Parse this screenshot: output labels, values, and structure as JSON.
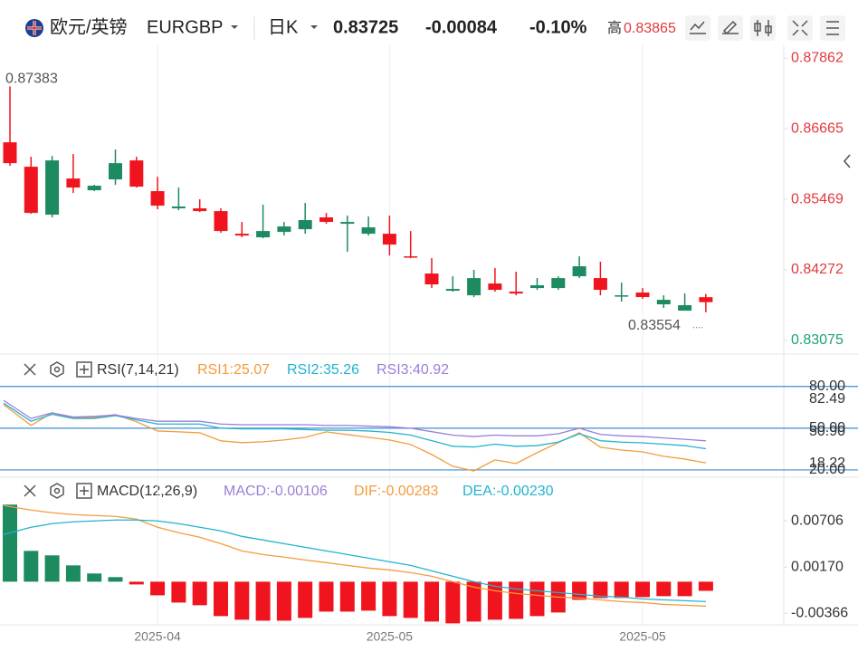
{
  "header": {
    "pair_name": "欧元/英镑",
    "symbol": "EURGBP",
    "period": "日K",
    "price": "0.83725",
    "change": "-0.00084",
    "change_pct": "-0.10%",
    "high_label": "高",
    "high": "0.83865"
  },
  "chart_data": [
    {
      "type": "candlestick",
      "up_color": "#1e8a5f",
      "down_color": "#f0141e",
      "categories": [
        null,
        null,
        null,
        null,
        null,
        null,
        null,
        "2025-04",
        null,
        null,
        null,
        null,
        null,
        null,
        null,
        null,
        null,
        null,
        "2025-05",
        null,
        null,
        null,
        null,
        null,
        null,
        null,
        null,
        null,
        null,
        null,
        "2025-05",
        null,
        null,
        null
      ],
      "open": [
        0.86435,
        0.86021,
        0.85208,
        0.85821,
        0.85622,
        0.85806,
        0.86128,
        0.85607,
        0.85315,
        0.85315,
        0.85269,
        0.84885,
        0.84824,
        0.84916,
        0.84962,
        0.85162,
        0.85054,
        0.84885,
        0.84885,
        0.84502,
        0.8421,
        0.83918,
        0.83841,
        0.84041,
        0.83903,
        0.83964,
        0.83964,
        0.84164,
        0.84133,
        0.83826,
        0.83888,
        0.83688,
        0.83581,
        0.83809
      ],
      "high": [
        0.87383,
        0.8619,
        0.86205,
        0.86236,
        0.85714,
        0.86312,
        0.8619,
        0.85852,
        0.85668,
        0.85469,
        0.85315,
        0.85085,
        0.85377,
        0.85085,
        0.85407,
        0.85238,
        0.85192,
        0.85177,
        0.85192,
        0.84931,
        0.84471,
        0.84164,
        0.84272,
        0.84302,
        0.84241,
        0.84133,
        0.84164,
        0.84502,
        0.8441,
        0.84057,
        0.83964,
        0.83841,
        0.83872,
        0.83865
      ],
      "low": [
        0.86036,
        0.85223,
        0.85162,
        0.85576,
        0.85607,
        0.85714,
        0.85668,
        0.853,
        0.85284,
        0.85254,
        0.84901,
        0.84824,
        0.84808,
        0.84854,
        0.84885,
        0.85054,
        0.84578,
        0.84854,
        0.84517,
        0.84471,
        0.83964,
        0.83903,
        0.83811,
        0.83903,
        0.83841,
        0.83934,
        0.83934,
        0.84133,
        0.83841,
        0.83734,
        0.8378,
        0.83627,
        0.836,
        0.83554
      ],
      "close": [
        0.86082,
        0.85238,
        0.86128,
        0.85668,
        0.85699,
        0.86082,
        0.85683,
        0.85361,
        0.85346,
        0.85269,
        0.84931,
        0.84854,
        0.84931,
        0.85008,
        0.85116,
        0.85085,
        0.85085,
        0.84993,
        0.84701,
        0.84487,
        0.84026,
        0.83949,
        0.84133,
        0.83934,
        0.83872,
        0.84011,
        0.84133,
        0.84333,
        0.83934,
        0.83841,
        0.83811,
        0.83765,
        0.83673,
        0.83725
      ],
      "ylim": [
        0.8286,
        0.8808
      ],
      "yticks": [
        0.87862,
        0.86665,
        0.85469,
        0.84272,
        0.83075
      ],
      "max_label": 0.87383,
      "min_label": 0.83554
    },
    {
      "type": "line",
      "title": "RSI(7,14,21)",
      "ylim": [
        18,
        102
      ],
      "yticks": [
        {
          "value": 80,
          "label": "80.00"
        },
        {
          "value": 50,
          "label": "50.00"
        },
        {
          "value": 20,
          "label": "20.00"
        }
      ],
      "annotations": [
        "82.49",
        "50.90",
        "18.22"
      ],
      "line_color": "#3c8fd6",
      "series": [
        {
          "name": "RSI1:25.07",
          "color": "#f39c3c",
          "values": [
            67.0,
            52.0,
            61.1,
            57.2,
            57.8,
            59.8,
            54.6,
            48.0,
            47.4,
            46.7,
            40.9,
            39.6,
            40.2,
            41.5,
            43.5,
            47.4,
            45.4,
            43.5,
            41.5,
            38.3,
            31.1,
            22.6,
            19.3,
            27.2,
            24.6,
            32.4,
            39.6,
            46.7,
            36.3,
            34.3,
            33.0,
            29.8,
            27.8,
            25.07
          ]
        },
        {
          "name": "RSI2:35.26",
          "color": "#21b3cf",
          "values": [
            68,
            55,
            60,
            57,
            57,
            59,
            56,
            53,
            53,
            53,
            50,
            49.5,
            49.5,
            49.5,
            49,
            48.5,
            48.5,
            48,
            47,
            45,
            41,
            37,
            36.5,
            38.5,
            37,
            37.5,
            40,
            46,
            41,
            40,
            39.5,
            38.5,
            37.5,
            35.26
          ]
        },
        {
          "name": "RSI3:40.92",
          "color": "#9b7fd6",
          "values": [
            70,
            57,
            61,
            58,
            58.5,
            59.5,
            57,
            55,
            55,
            55,
            53,
            52.5,
            52.5,
            52.5,
            52.5,
            52,
            52,
            51.5,
            51,
            50,
            47.5,
            45,
            44,
            45,
            44.5,
            44.5,
            46,
            50,
            45.5,
            44.5,
            44,
            43,
            42,
            40.92
          ]
        }
      ]
    },
    {
      "type": "macd",
      "title": "MACD(12,26,9)",
      "ylim": [
        -0.005,
        0.012
      ],
      "yticks": [
        0.00706,
        {
          "value": 0.0017,
          "label": "0.00170"
        },
        -0.00366
      ],
      "up_color": "#1e8a5f",
      "down_color": "#f0141e",
      "series": [
        {
          "name": "MACD:-0.00106",
          "color": "#9b7fd6",
          "values": [
            0.00893,
            0.00357,
            0.00305,
            0.00189,
            0.00095,
            0.00053,
            -0.00032,
            -0.00158,
            -0.00242,
            -0.00273,
            -0.00399,
            -0.00441,
            -0.00452,
            -0.00452,
            -0.0042,
            -0.00347,
            -0.00347,
            -0.00336,
            -0.00399,
            -0.0042,
            -0.00462,
            -0.00483,
            -0.00462,
            -0.00441,
            -0.00431,
            -0.00399,
            -0.00357,
            -0.0021,
            -0.00189,
            -0.00189,
            -0.00179,
            -0.00168,
            -0.00168,
            -0.00106
          ]
        },
        {
          "name": "DIF:-0.00283",
          "color": "#f39c3c",
          "values": [
            0.00883,
            0.0083,
            0.00799,
            0.00778,
            0.00767,
            0.00757,
            0.00725,
            0.00631,
            0.00568,
            0.00515,
            0.00441,
            0.00357,
            0.00315,
            0.00284,
            0.00252,
            0.00221,
            0.00189,
            0.00158,
            0.00137,
            0.00105,
            0.00063,
            0,
            -0.00063,
            -0.00105,
            -0.00137,
            -0.00158,
            -0.00179,
            -0.00189,
            -0.0021,
            -0.00231,
            -0.00242,
            -0.00263,
            -0.00273,
            -0.00283
          ]
        },
        {
          "name": "DEA:-0.00230",
          "color": "#21b3cf",
          "values": [
            0.00547,
            0.00631,
            0.00673,
            0.00694,
            0.00704,
            0.00715,
            0.00715,
            0.00704,
            0.00673,
            0.00631,
            0.00589,
            0.00525,
            0.00483,
            0.00441,
            0.00399,
            0.00357,
            0.00315,
            0.00273,
            0.00231,
            0.00189,
            0.00126,
            0.00063,
            0,
            -0.00053,
            -0.00084,
            -0.00105,
            -0.00126,
            -0.00147,
            -0.00168,
            -0.00179,
            -0.002,
            -0.0021,
            -0.00221,
            -0.0023
          ]
        }
      ]
    }
  ]
}
